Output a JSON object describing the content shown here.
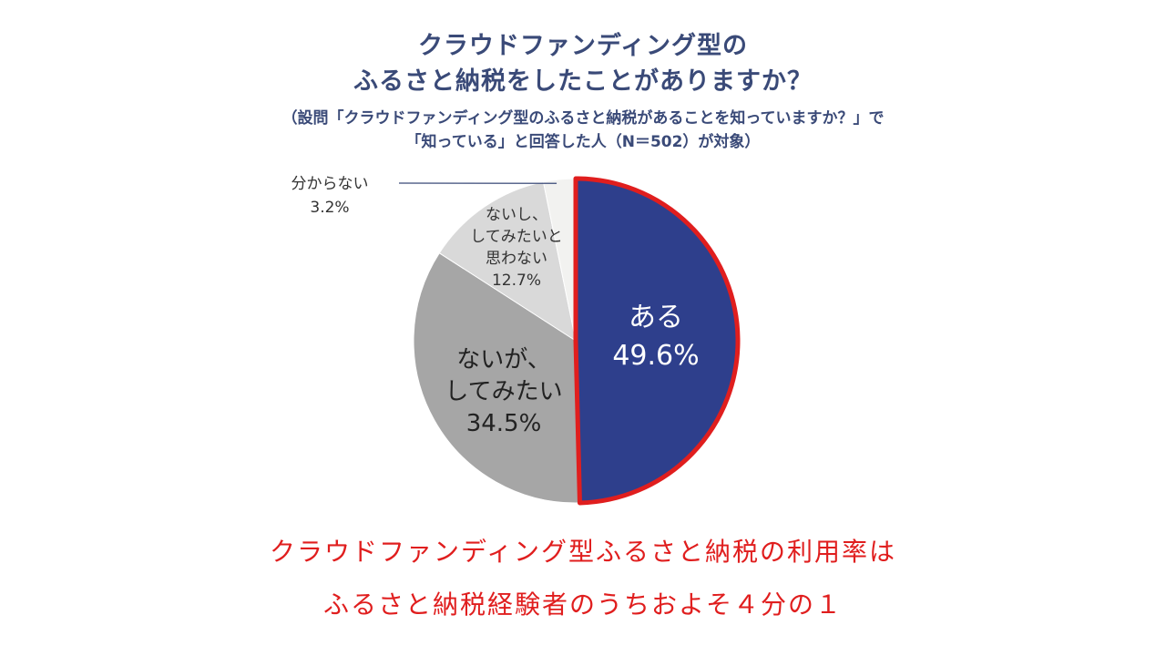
{
  "title_line1": "クラウドファンディング型の",
  "title_line2": "ふるさと納税をしたことがありますか？",
  "subtitle_line1": "（設問「クラウドファンディング型のふるさと納税があることを知っていますか？」で",
  "subtitle_line2": "「知っている」と回答した人（N＝502）が対象）",
  "caption_line1": "クラウドファンディング型ふるさと納税の利用率は",
  "caption_line2": "ふるさと納税経験者のうちおよそ４分の１",
  "colors": {
    "highlight_border": "#e01e1e",
    "title": "#3a4a78",
    "caption": "#e01e1e"
  },
  "chart_data": {
    "type": "pie",
    "start": "12 o'clock",
    "direction": "clockwise",
    "slices": [
      {
        "label_lines": [
          "ある",
          "49.6%"
        ],
        "value": 49.6,
        "color": "#2e3f8c",
        "text_color": "#ffffff",
        "highlighted": true
      },
      {
        "label_lines": [
          "ないが、",
          "してみたい",
          "34.5%"
        ],
        "value": 34.5,
        "color": "#a6a6a6",
        "text_color": "#222222",
        "highlighted": false
      },
      {
        "label_lines": [
          "ないし、",
          "してみたいと",
          "思わない",
          "12.7%"
        ],
        "value": 12.7,
        "color": "#d9d9d9",
        "text_color": "#333333",
        "highlighted": false
      },
      {
        "label_lines": [
          "分からない",
          "3.2%"
        ],
        "value": 3.2,
        "color": "#f2f2f0",
        "text_color": "#333333",
        "highlighted": false,
        "leader_line": true
      }
    ]
  }
}
